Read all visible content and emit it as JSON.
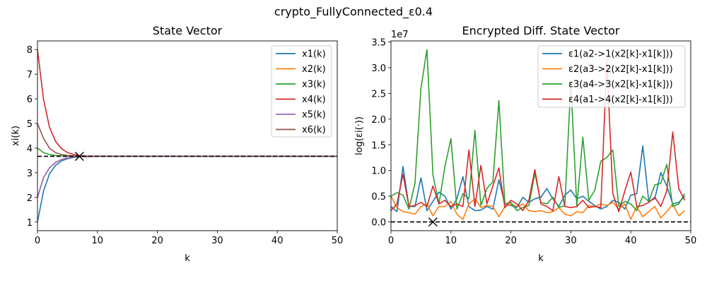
{
  "figure_title": "crypto_FullyConnected_ε0.4",
  "chart_data": [
    {
      "type": "line",
      "title": "State Vector",
      "xlabel": "k",
      "ylabel": "xi(k)",
      "xlim": [
        0,
        50
      ],
      "ylim": [
        0.65,
        8.35
      ],
      "xticks": [
        0,
        10,
        20,
        30,
        40,
        50
      ],
      "yticks": [
        1,
        2,
        3,
        4,
        5,
        6,
        7,
        8
      ],
      "grid": false,
      "legend": "top-right",
      "x": [
        0,
        1,
        2,
        3,
        4,
        5,
        6,
        7,
        8,
        9,
        10,
        11,
        12,
        13,
        14,
        15,
        16,
        17,
        18,
        19,
        20,
        21,
        22,
        23,
        24,
        25,
        26,
        27,
        28,
        29,
        30,
        31,
        32,
        33,
        34,
        35,
        36,
        37,
        38,
        39,
        40,
        41,
        42,
        43,
        44,
        45,
        46,
        47,
        48,
        49,
        50
      ],
      "series": [
        {
          "name": "x1(k)",
          "color": "#1f77b4",
          "values": [
            1.0,
            2.25,
            2.95,
            3.3,
            3.48,
            3.57,
            3.62,
            3.645,
            3.655,
            3.66,
            3.665,
            3.667,
            3.668,
            3.668,
            3.668,
            3.668,
            3.668,
            3.668,
            3.668,
            3.668,
            3.668,
            3.668,
            3.668,
            3.668,
            3.668,
            3.668,
            3.668,
            3.668,
            3.668,
            3.668,
            3.668,
            3.668,
            3.668,
            3.668,
            3.668,
            3.668,
            3.668,
            3.668,
            3.668,
            3.668,
            3.668,
            3.668,
            3.668,
            3.668,
            3.668,
            3.668,
            3.668,
            3.668,
            3.668,
            3.668,
            3.668
          ]
        },
        {
          "name": "x2(k)",
          "color": "#ff7f0e",
          "values": [
            2.0,
            2.8,
            3.2,
            3.42,
            3.54,
            3.6,
            3.635,
            3.65,
            3.66,
            3.664,
            3.666,
            3.667,
            3.668,
            3.668,
            3.668,
            3.668,
            3.668,
            3.668,
            3.668,
            3.668,
            3.668,
            3.668,
            3.668,
            3.668,
            3.668,
            3.668,
            3.668,
            3.668,
            3.668,
            3.668,
            3.668,
            3.668,
            3.668,
            3.668,
            3.668,
            3.668,
            3.668,
            3.668,
            3.668,
            3.668,
            3.668,
            3.668,
            3.668,
            3.668,
            3.668,
            3.668,
            3.668,
            3.668,
            3.668,
            3.668,
            3.668
          ]
        },
        {
          "name": "x3(k)",
          "color": "#2ca02c",
          "values": [
            4.0,
            3.82,
            3.74,
            3.705,
            3.688,
            3.678,
            3.673,
            3.67,
            3.669,
            3.668,
            3.668,
            3.668,
            3.668,
            3.668,
            3.668,
            3.668,
            3.668,
            3.668,
            3.668,
            3.668,
            3.668,
            3.668,
            3.668,
            3.668,
            3.668,
            3.668,
            3.668,
            3.668,
            3.668,
            3.668,
            3.668,
            3.668,
            3.668,
            3.668,
            3.668,
            3.668,
            3.668,
            3.668,
            3.668,
            3.668,
            3.668,
            3.668,
            3.668,
            3.668,
            3.668,
            3.668,
            3.668,
            3.668,
            3.668,
            3.668,
            3.668
          ]
        },
        {
          "name": "x4(k)",
          "color": "#d62728",
          "values": [
            8.0,
            6.0,
            4.85,
            4.28,
            3.98,
            3.82,
            3.74,
            3.7,
            3.684,
            3.676,
            3.671,
            3.669,
            3.668,
            3.668,
            3.668,
            3.668,
            3.668,
            3.668,
            3.668,
            3.668,
            3.668,
            3.668,
            3.668,
            3.668,
            3.668,
            3.668,
            3.668,
            3.668,
            3.668,
            3.668,
            3.668,
            3.668,
            3.668,
            3.668,
            3.668,
            3.668,
            3.668,
            3.668,
            3.668,
            3.668,
            3.668,
            3.668,
            3.668,
            3.668,
            3.668,
            3.668,
            3.668,
            3.668,
            3.668,
            3.668,
            3.668
          ]
        },
        {
          "name": "x5(k)",
          "color": "#9467bd",
          "values": [
            2.0,
            2.8,
            3.2,
            3.42,
            3.54,
            3.6,
            3.635,
            3.65,
            3.66,
            3.664,
            3.666,
            3.667,
            3.668,
            3.668,
            3.668,
            3.668,
            3.668,
            3.668,
            3.668,
            3.668,
            3.668,
            3.668,
            3.668,
            3.668,
            3.668,
            3.668,
            3.668,
            3.668,
            3.668,
            3.668,
            3.668,
            3.668,
            3.668,
            3.668,
            3.668,
            3.668,
            3.668,
            3.668,
            3.668,
            3.668,
            3.668,
            3.668,
            3.668,
            3.668,
            3.668,
            3.668,
            3.668,
            3.668,
            3.668,
            3.668,
            3.668
          ]
        },
        {
          "name": "x6(k)",
          "color": "#8c564b",
          "values": [
            5.0,
            4.4,
            4.0,
            3.82,
            3.74,
            3.7,
            3.684,
            3.676,
            3.671,
            3.669,
            3.668,
            3.668,
            3.668,
            3.668,
            3.668,
            3.668,
            3.668,
            3.668,
            3.668,
            3.668,
            3.668,
            3.668,
            3.668,
            3.668,
            3.668,
            3.668,
            3.668,
            3.668,
            3.668,
            3.668,
            3.668,
            3.668,
            3.668,
            3.668,
            3.668,
            3.668,
            3.668,
            3.668,
            3.668,
            3.668,
            3.668,
            3.668,
            3.668,
            3.668,
            3.668,
            3.668,
            3.668,
            3.668,
            3.668,
            3.668,
            3.668
          ]
        }
      ],
      "reference_line": {
        "y": 3.667,
        "style": "dashed",
        "color": "#000000"
      },
      "marker": {
        "x": 7,
        "y": 3.667,
        "symbol": "x"
      }
    },
    {
      "type": "line",
      "title": "Encrypted Diff. State Vector",
      "xlabel": "k",
      "ylabel": "log(εi(·))",
      "scale_label": "1e7",
      "xlim": [
        0,
        50
      ],
      "ylim": [
        -0.17,
        3.52
      ],
      "xticks": [
        0,
        10,
        20,
        30,
        40,
        50
      ],
      "yticks": [
        0.0,
        0.5,
        1.0,
        1.5,
        2.0,
        2.5,
        3.0,
        3.5
      ],
      "ytick_labels": [
        "0.0",
        "0.5",
        "1.0",
        "1.5",
        "2.0",
        "2.5",
        "3.0",
        "3.5"
      ],
      "grid": false,
      "legend": "top-right",
      "x": [
        0,
        1,
        2,
        3,
        4,
        5,
        6,
        7,
        8,
        9,
        10,
        11,
        12,
        13,
        14,
        15,
        16,
        17,
        18,
        19,
        20,
        21,
        22,
        23,
        24,
        25,
        26,
        27,
        28,
        29,
        30,
        31,
        32,
        33,
        34,
        35,
        36,
        37,
        38,
        39,
        40,
        41,
        42,
        43,
        44,
        45,
        46,
        47,
        48,
        49
      ],
      "series": [
        {
          "name": "ε1(a2->1(x2[k]-x1[k]))",
          "color": "#1f77b4",
          "values": [
            0.3,
            0.2,
            1.08,
            0.3,
            0.3,
            0.86,
            0.22,
            0.4,
            0.58,
            0.5,
            0.25,
            0.45,
            0.88,
            0.3,
            0.22,
            0.23,
            0.3,
            0.25,
            0.82,
            0.35,
            0.32,
            0.28,
            0.48,
            0.38,
            0.45,
            0.48,
            0.65,
            0.45,
            0.3,
            0.52,
            0.62,
            0.45,
            0.5,
            0.4,
            0.32,
            0.25,
            0.3,
            0.42,
            0.38,
            0.25,
            0.52,
            0.55,
            1.48,
            0.4,
            0.45,
            0.96,
            0.7,
            0.35,
            0.38,
            0.5
          ]
        },
        {
          "name": "ε2(a3->2(x2[k]-x1[k]))",
          "color": "#ff7f0e",
          "values": [
            0.5,
            0.28,
            0.2,
            0.18,
            0.15,
            0.3,
            0.35,
            0.12,
            0.3,
            0.3,
            0.4,
            0.15,
            0.05,
            0.35,
            0.45,
            0.28,
            0.32,
            0.3,
            0.1,
            0.3,
            0.35,
            0.3,
            0.35,
            0.22,
            0.2,
            0.22,
            0.18,
            0.2,
            0.28,
            0.15,
            0.12,
            0.2,
            0.18,
            0.32,
            0.3,
            0.35,
            0.32,
            0.38,
            0.25,
            0.35,
            0.05,
            0.3,
            0.1,
            0.2,
            0.3,
            0.08,
            0.2,
            0.35,
            0.12,
            0.22
          ]
        },
        {
          "name": "ε3(a4->3(x2[k]-x1[k]))",
          "color": "#2ca02c",
          "values": [
            0.5,
            0.57,
            0.52,
            0.25,
            0.75,
            2.6,
            3.35,
            0.92,
            0.35,
            1.08,
            1.62,
            0.25,
            0.55,
            0.45,
            1.78,
            0.32,
            0.65,
            0.78,
            2.36,
            0.35,
            0.38,
            0.22,
            0.28,
            0.32,
            0.95,
            0.38,
            0.35,
            0.48,
            0.28,
            0.32,
            2.7,
            0.3,
            1.65,
            0.42,
            0.62,
            1.18,
            1.25,
            1.4,
            0.3,
            0.4,
            0.35,
            0.22,
            0.5,
            0.4,
            0.72,
            0.75,
            1.12,
            0.3,
            0.35,
            0.55
          ]
        },
        {
          "name": "ε4(a1->4(x2[k]-x1[k]))",
          "color": "#d62728",
          "values": [
            0.22,
            0.35,
            0.93,
            0.3,
            0.32,
            0.38,
            0.3,
            0.7,
            0.35,
            0.42,
            0.3,
            0.35,
            0.3,
            1.4,
            0.3,
            1.1,
            0.35,
            0.7,
            1.05,
            0.28,
            0.42,
            0.35,
            0.22,
            0.42,
            1.02,
            0.35,
            0.3,
            0.22,
            0.88,
            0.3,
            0.28,
            0.3,
            0.42,
            0.28,
            0.3,
            0.28,
            3.15,
            0.55,
            0.2,
            0.6,
            0.97,
            0.3,
            0.32,
            0.38,
            0.48,
            0.3,
            0.6,
            1.75,
            0.65,
            0.42
          ]
        }
      ],
      "reference_line": {
        "y": 0.0,
        "style": "dashed",
        "color": "#000000"
      },
      "marker": {
        "x": 7,
        "y": 0.0,
        "symbol": "x"
      }
    }
  ]
}
